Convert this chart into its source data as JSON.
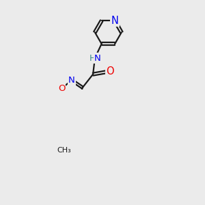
{
  "bg_color": "#ebebeb",
  "bond_color": "#1a1a1a",
  "bond_width": 1.6,
  "atom_colors": {
    "C": "#1a1a1a",
    "N": "#0000ee",
    "O": "#ee0000",
    "H": "#3a8a8a"
  },
  "font_size": 9.5,
  "fig_size": [
    3.0,
    3.0
  ],
  "dpi": 100
}
